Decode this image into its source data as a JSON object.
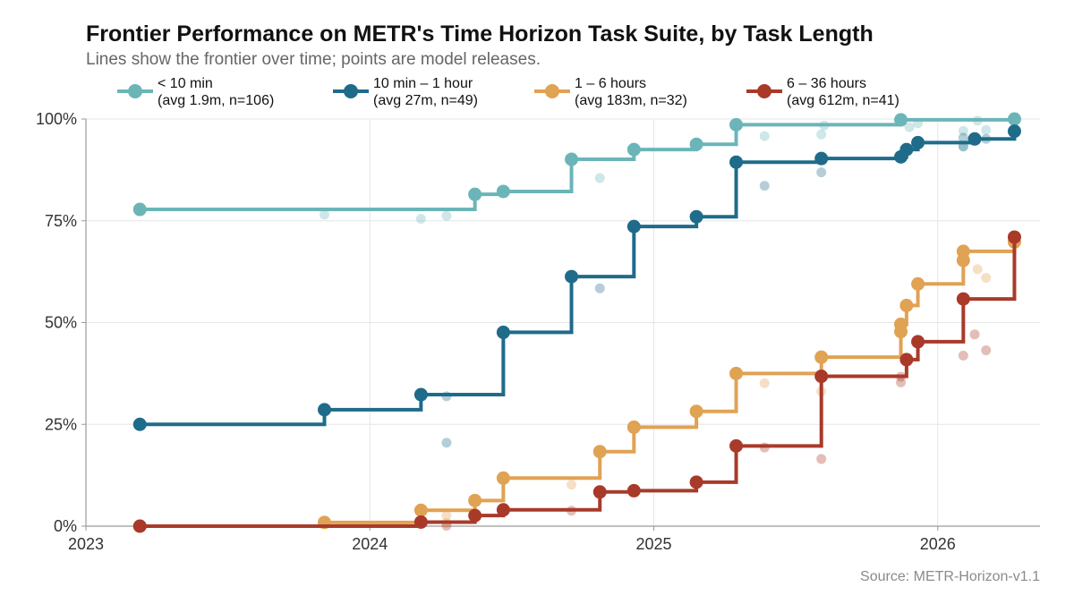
{
  "chart_data": {
    "type": "line",
    "title": "Frontier Performance on METR's Time Horizon Task Suite, by Task Length",
    "subtitle": "Lines show the frontier over time; points are model releases.",
    "source": "Source: METR-Horizon-v1.1",
    "x_ticks": [
      "2023",
      "2024",
      "2025",
      "2026"
    ],
    "y_ticks": [
      "0%",
      "25%",
      "50%",
      "75%",
      "100%"
    ],
    "xlim": [
      2023.0,
      2026.36
    ],
    "ylim": [
      0,
      100
    ],
    "grid": true,
    "legend_position": "top",
    "series": [
      {
        "name": "< 10 min",
        "detail": "(avg 1.9m, n=106)",
        "color": "#6bb5b8",
        "frontier": [
          [
            2023.19,
            77.8
          ],
          [
            2024.37,
            81.5
          ],
          [
            2024.47,
            82.2
          ],
          [
            2024.71,
            90.1
          ],
          [
            2024.93,
            92.5
          ],
          [
            2025.15,
            93.8
          ],
          [
            2025.29,
            98.6
          ],
          [
            2025.87,
            99.8
          ],
          [
            2026.27,
            100.0
          ]
        ],
        "others": [
          [
            2023.84,
            76.5
          ],
          [
            2024.18,
            75.5
          ],
          [
            2024.27,
            76.2
          ],
          [
            2024.81,
            85.5
          ],
          [
            2025.39,
            95.8
          ],
          [
            2025.59,
            96.2
          ],
          [
            2025.6,
            98.4
          ],
          [
            2025.9,
            98.0
          ],
          [
            2025.93,
            99.0
          ],
          [
            2026.09,
            93.2
          ],
          [
            2026.09,
            97.1
          ],
          [
            2026.14,
            99.6
          ],
          [
            2026.17,
            97.3
          ],
          [
            2026.27,
            99.8
          ]
        ]
      },
      {
        "name": "10 min – 1 hour",
        "detail": "(avg 27m, n=49)",
        "color": "#1f6b8a",
        "frontier": [
          [
            2023.19,
            25.0
          ],
          [
            2023.84,
            28.6
          ],
          [
            2024.18,
            32.3
          ],
          [
            2024.47,
            47.6
          ],
          [
            2024.71,
            61.3
          ],
          [
            2024.93,
            73.6
          ],
          [
            2025.15,
            76.0
          ],
          [
            2025.29,
            89.4
          ],
          [
            2025.59,
            90.3
          ],
          [
            2025.87,
            90.7
          ],
          [
            2025.89,
            92.5
          ],
          [
            2025.93,
            94.2
          ],
          [
            2026.13,
            95.1
          ],
          [
            2026.27,
            97.0
          ]
        ],
        "others": [
          [
            2024.27,
            20.5
          ],
          [
            2024.27,
            31.9
          ],
          [
            2024.81,
            58.4
          ],
          [
            2025.39,
            83.6
          ],
          [
            2025.59,
            86.9
          ],
          [
            2026.09,
            93.3
          ],
          [
            2026.09,
            95.4
          ],
          [
            2026.17,
            95.1
          ]
        ]
      },
      {
        "name": "1 – 6 hours",
        "detail": "(avg 183m, n=32)",
        "color": "#e0a253",
        "frontier": [
          [
            2023.19,
            0.0
          ],
          [
            2023.84,
            0.9
          ],
          [
            2024.18,
            3.9
          ],
          [
            2024.37,
            6.3
          ],
          [
            2024.47,
            11.8
          ],
          [
            2024.81,
            18.3
          ],
          [
            2024.93,
            24.3
          ],
          [
            2025.15,
            28.2
          ],
          [
            2025.29,
            37.5
          ],
          [
            2025.59,
            41.5
          ],
          [
            2025.87,
            47.8
          ],
          [
            2025.87,
            49.6
          ],
          [
            2025.89,
            54.2
          ],
          [
            2025.93,
            59.5
          ],
          [
            2026.09,
            65.3
          ],
          [
            2026.09,
            67.5
          ],
          [
            2026.27,
            69.8
          ]
        ],
        "others": [
          [
            2024.27,
            0.8
          ],
          [
            2024.27,
            2.6
          ],
          [
            2024.71,
            10.2
          ],
          [
            2025.39,
            35.1
          ],
          [
            2025.59,
            33.1
          ],
          [
            2026.14,
            63.1
          ],
          [
            2026.17,
            61.0
          ]
        ]
      },
      {
        "name": "6 – 36 hours",
        "detail": "(avg 612m, n=41)",
        "color": "#a93a2a",
        "frontier": [
          [
            2023.19,
            0.0
          ],
          [
            2024.18,
            1.0
          ],
          [
            2024.37,
            2.6
          ],
          [
            2024.47,
            4.0
          ],
          [
            2024.81,
            8.4
          ],
          [
            2024.93,
            8.7
          ],
          [
            2025.15,
            10.8
          ],
          [
            2025.29,
            19.7
          ],
          [
            2025.59,
            36.8
          ],
          [
            2025.89,
            40.9
          ],
          [
            2025.93,
            45.3
          ],
          [
            2026.09,
            55.8
          ],
          [
            2026.27,
            71.0
          ]
        ],
        "others": [
          [
            2024.27,
            0.1
          ],
          [
            2024.71,
            3.8
          ],
          [
            2025.39,
            19.3
          ],
          [
            2025.59,
            16.5
          ],
          [
            2025.87,
            35.3
          ],
          [
            2025.87,
            36.7
          ],
          [
            2026.09,
            41.9
          ],
          [
            2026.13,
            47.1
          ],
          [
            2026.17,
            43.2
          ]
        ]
      }
    ]
  }
}
